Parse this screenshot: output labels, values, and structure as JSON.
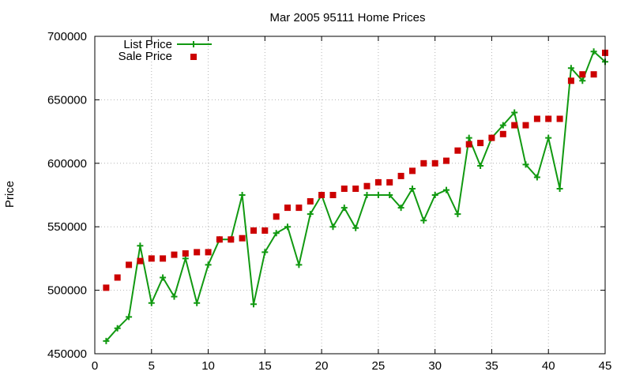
{
  "chart_data": {
    "type": "line",
    "title": "Mar 2005 95111 Home Prices",
    "xlabel": "",
    "ylabel": "Price",
    "xlim": [
      0,
      45
    ],
    "ylim": [
      450000,
      700000
    ],
    "xticks": [
      0,
      5,
      10,
      15,
      20,
      25,
      30,
      35,
      40,
      45
    ],
    "yticks": [
      450000,
      500000,
      550000,
      600000,
      650000,
      700000
    ],
    "grid": true,
    "legend_position": "top-left",
    "series": [
      {
        "name": "List Price",
        "style": "line-with-plus-markers",
        "color": "#119911",
        "x": [
          1,
          2,
          3,
          4,
          5,
          6,
          7,
          8,
          9,
          10,
          11,
          12,
          13,
          14,
          15,
          16,
          17,
          18,
          19,
          20,
          21,
          22,
          23,
          24,
          25,
          26,
          27,
          28,
          29,
          30,
          31,
          32,
          33,
          34,
          35,
          36,
          37,
          38,
          39,
          40,
          41,
          42,
          43,
          44,
          45
        ],
        "values": [
          460000,
          470000,
          479000,
          535000,
          490000,
          510000,
          495000,
          525000,
          490000,
          520000,
          540000,
          540000,
          575000,
          489000,
          530000,
          545000,
          550000,
          520000,
          560000,
          575000,
          550000,
          565000,
          549000,
          575000,
          575000,
          575000,
          565000,
          580000,
          555000,
          575000,
          579000,
          560000,
          620000,
          598000,
          620000,
          630000,
          640000,
          599000,
          589000,
          620000,
          580000,
          675000,
          665000,
          688000,
          680000
        ]
      },
      {
        "name": "Sale Price",
        "style": "square-markers",
        "color": "#cc0000",
        "x": [
          1,
          2,
          3,
          4,
          5,
          6,
          7,
          8,
          9,
          10,
          11,
          12,
          13,
          14,
          15,
          16,
          17,
          18,
          19,
          20,
          21,
          22,
          23,
          24,
          25,
          26,
          27,
          28,
          29,
          30,
          31,
          32,
          33,
          34,
          35,
          36,
          37,
          38,
          39,
          40,
          41,
          42,
          43,
          44,
          45
        ],
        "values": [
          502000,
          510000,
          520000,
          523000,
          525000,
          525000,
          528000,
          529000,
          530000,
          530000,
          540000,
          540000,
          541000,
          547000,
          547000,
          558000,
          565000,
          565000,
          570000,
          575000,
          575000,
          580000,
          580000,
          582000,
          585000,
          585000,
          590000,
          594000,
          600000,
          600000,
          602000,
          610000,
          615000,
          616000,
          620000,
          623000,
          630000,
          630000,
          635000,
          635000,
          635000,
          665000,
          670000,
          670000,
          687000
        ]
      }
    ]
  }
}
